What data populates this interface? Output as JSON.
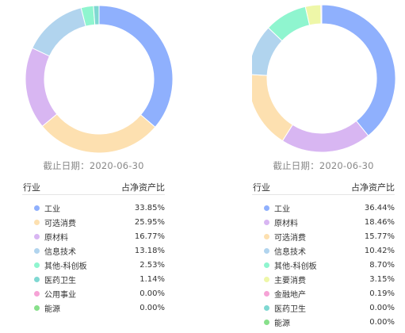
{
  "chart_data": [
    {
      "type": "pie",
      "donut": true,
      "date_label": "截止日期：2020-06-30",
      "column_headers": [
        "行业",
        "占净资产比"
      ],
      "rows": [
        {
          "name": "工业",
          "value_text": "33.85%",
          "value": 33.85,
          "color": "#8fb0fd"
        },
        {
          "name": "可选消费",
          "value_text": "25.95%",
          "value": 25.95,
          "color": "#fde0b0"
        },
        {
          "name": "原材料",
          "value_text": "16.77%",
          "value": 16.77,
          "color": "#d8b6f2"
        },
        {
          "name": "信息技术",
          "value_text": "13.18%",
          "value": 13.18,
          "color": "#b1d4ee"
        },
        {
          "name": "其他-科创板",
          "value_text": "2.53%",
          "value": 2.53,
          "color": "#8ff5cf"
        },
        {
          "name": "医药卫生",
          "value_text": "1.14%",
          "value": 1.14,
          "color": "#7fd8d2"
        },
        {
          "name": "公用事业",
          "value_text": "0.00%",
          "value": 0.0,
          "color": "#f6a3d6"
        },
        {
          "name": "能源",
          "value_text": "0.00%",
          "value": 0.0,
          "color": "#88e08b"
        }
      ]
    },
    {
      "type": "pie",
      "donut": true,
      "date_label": "截止日期：2020-06-30",
      "column_headers": [
        "行业",
        "占净资产比"
      ],
      "rows": [
        {
          "name": "工业",
          "value_text": "36.44%",
          "value": 36.44,
          "color": "#8fb0fd"
        },
        {
          "name": "原材料",
          "value_text": "18.46%",
          "value": 18.46,
          "color": "#d8b6f2"
        },
        {
          "name": "可选消费",
          "value_text": "15.77%",
          "value": 15.77,
          "color": "#fde0b0"
        },
        {
          "name": "信息技术",
          "value_text": "10.42%",
          "value": 10.42,
          "color": "#b1d4ee"
        },
        {
          "name": "其他-科创板",
          "value_text": "8.70%",
          "value": 8.7,
          "color": "#8ff5cf"
        },
        {
          "name": "主要消费",
          "value_text": "3.15%",
          "value": 3.15,
          "color": "#eef7a8"
        },
        {
          "name": "金融地产",
          "value_text": "0.19%",
          "value": 0.19,
          "color": "#f6a3d6"
        },
        {
          "name": "医药卫生",
          "value_text": "0.00%",
          "value": 0.0,
          "color": "#7fd8d2"
        },
        {
          "name": "能源",
          "value_text": "0.00%",
          "value": 0.0,
          "color": "#88e08b"
        }
      ]
    }
  ]
}
